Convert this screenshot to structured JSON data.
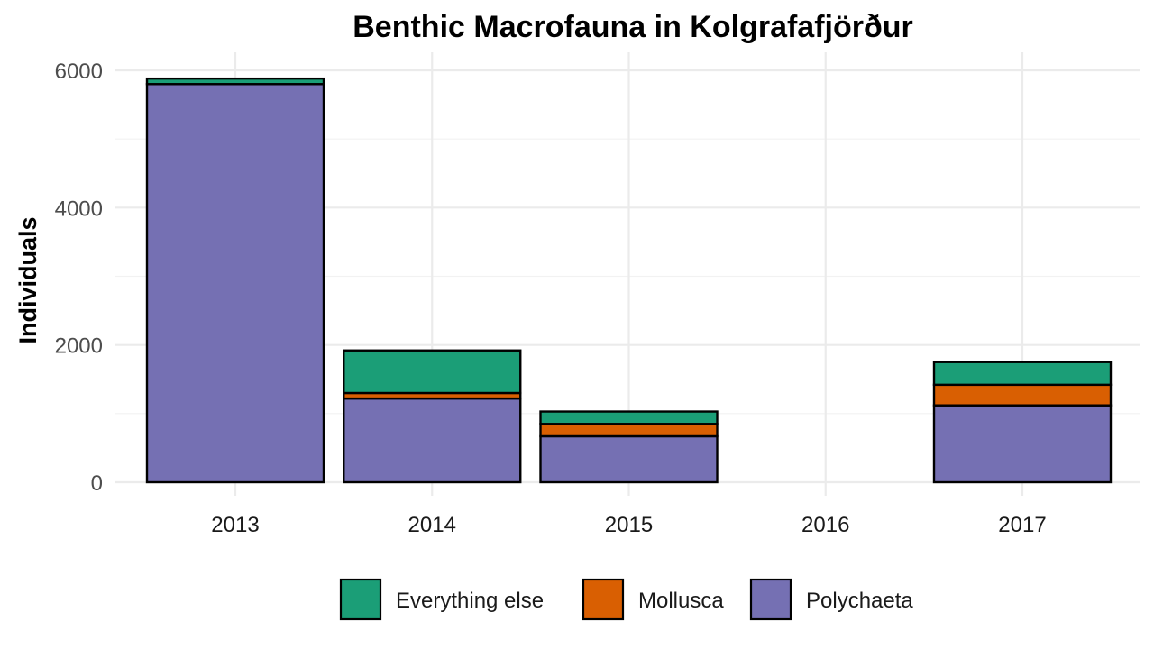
{
  "chart_data": {
    "type": "bar",
    "stacked": true,
    "title": "Benthic Macrofauna in Kolgrafafjörður",
    "xlabel": "",
    "ylabel": "Individuals",
    "categories": [
      "2013",
      "2014",
      "2015",
      "2016",
      "2017"
    ],
    "highlight_category": {
      "name": "2016",
      "color": "#e41a1c"
    },
    "ylim": [
      0,
      6000
    ],
    "yticks": [
      0,
      2000,
      4000,
      6000
    ],
    "grid": true,
    "legend_position": "bottom",
    "series": [
      {
        "name": "Polychaeta",
        "color": "#7570b3",
        "values": [
          5800,
          1220,
          670,
          0,
          1120
        ]
      },
      {
        "name": "Mollusca",
        "color": "#d95f02",
        "values": [
          0,
          80,
          180,
          0,
          300
        ]
      },
      {
        "name": "Everything else",
        "color": "#1b9e77",
        "values": [
          80,
          620,
          180,
          0,
          330
        ]
      }
    ],
    "legend_order": [
      "Everything else",
      "Mollusca",
      "Polychaeta"
    ]
  }
}
